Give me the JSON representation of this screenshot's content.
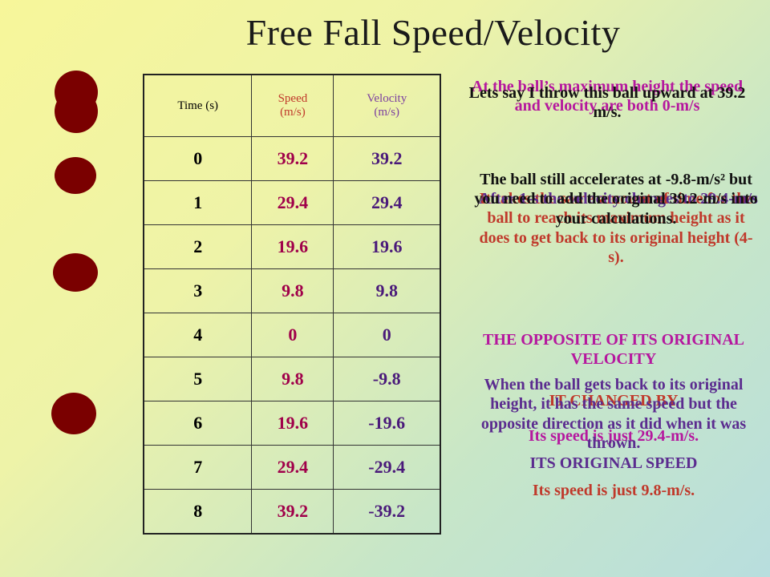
{
  "slide": {
    "title": "Free Fall Speed/Velocity",
    "table": {
      "headers": [
        "Time (s)",
        "Speed (m/s)",
        "Velocity (m/s)"
      ],
      "rows": [
        {
          "time": "0",
          "speed": "39.2",
          "velocity": "39.2"
        },
        {
          "time": "1",
          "speed": "29.4",
          "velocity": "29.4"
        },
        {
          "time": "2",
          "speed": "19.6",
          "velocity": "19.6"
        },
        {
          "time": "3",
          "speed": "9.8",
          "velocity": "9.8"
        },
        {
          "time": "4",
          "speed": "0",
          "velocity": "0"
        },
        {
          "time": "5",
          "speed": "9.8",
          "velocity": "-9.8"
        },
        {
          "time": "6",
          "speed": "19.6",
          "velocity": "-19.6"
        },
        {
          "time": "7",
          "speed": "29.4",
          "velocity": "-29.4"
        },
        {
          "time": "8",
          "speed": "39.2",
          "velocity": "-39.2"
        }
      ]
    },
    "notes": {
      "throw_up": "Lets say I throw this ball upward at 39.2 m/s.",
      "max_height": "At the ball’s maximum height the speed and velocity are both 0-m/s",
      "accelerates": "The ball still accelerates at -9.8-m/s² but you need to add the original 39.2-m/s into your calculations.",
      "same_time": "It takes the same amount of time for the ball to reach its maximum height as it does to get back to its original height (4-s).",
      "velocity_changes": "After 1-s the velocity changes to 29.4-m/s",
      "opposite": "THE OPPOSITE OF ITS ORIGINAL VELOCITY",
      "changed_by": "IT CHANGED BY",
      "speed_is": "Its speed is just 29.4-m/s.",
      "original_speed": "ITS ORIGINAL SPEED",
      "speed_98": "Its speed is just 9.8-m/s.",
      "back_original": "When the ball gets back to its original height, it has the same speed but the opposite direction as it did when it was thrown."
    },
    "colors": {
      "ball": "#7a0000",
      "speed": "#a0004a",
      "velocity": "#4a1a7a"
    }
  }
}
